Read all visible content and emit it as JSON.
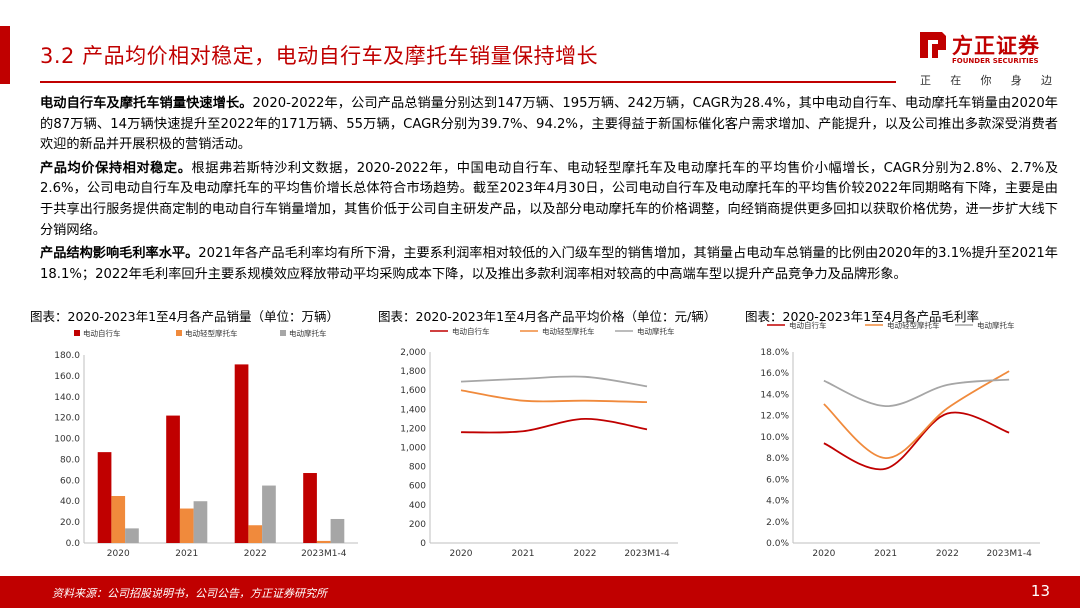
{
  "header": {
    "title": "3.2 产品均价相对稳定，电动自行车及摩托车销量保持增长"
  },
  "logo": {
    "name": "方正证券",
    "name_en": "FOUNDER SECURITIES",
    "slogan": [
      "正",
      "在",
      "你",
      "身",
      "边"
    ]
  },
  "paragraphs": [
    {
      "lead": "电动自行车及摩托车销量快速增长。",
      "text": "2020-2022年，公司产品总销量分别达到147万辆、195万辆、242万辆，CAGR为28.4%，其中电动自行车、电动摩托车销量由2020年的87万辆、14万辆快速提升至2022年的171万辆、55万辆，CAGR分别为39.7%、94.2%，主要得益于新国标催化客户需求增加、产能提升，以及公司推出多款深受消费者欢迎的新品并开展积极的营销活动。"
    },
    {
      "lead": "产品均价保持相对稳定。",
      "text": "根据弗若斯特沙利文数据，2020-2022年，中国电动自行车、电动轻型摩托车及电动摩托车的平均售价小幅增长，CAGR分别为2.8%、2.7%及2.6%，公司电动自行车及电动摩托车的平均售价增长总体符合市场趋势。截至2023年4月30日，公司电动自行车及电动摩托车的平均售价较2022年同期略有下降，主要是由于共享出行服务提供商定制的电动自行车销量增加，其售价低于公司自主研发产品，以及部分电动摩托车的价格调整，向经销商提供更多回扣以获取价格优势，进一步扩大线下分销网络。"
    },
    {
      "lead": "产品结构影响毛利率水平。",
      "text": "2021年各产品毛利率均有所下滑，主要系利润率相对较低的入门级车型的销售增加，其销量占电动车总销量的比例由2020年的3.1%提升至2021年18.1%；2022年毛利率回升主要系规模效应释放带动平均采购成本下降，以及推出多款利润率相对较高的中高端车型以提升产品竞争力及品牌形象。"
    }
  ],
  "colors": {
    "brand": "#c00000",
    "series": [
      "#c00000",
      "#f08a3c",
      "#a6a6a6"
    ]
  },
  "chart_data": [
    {
      "type": "bar",
      "title": "图表：2020-2023年1至4月各产品销量（单位：万辆）",
      "categories": [
        "2020",
        "2021",
        "2022",
        "2023M1-4"
      ],
      "series": [
        {
          "name": "电动自行车",
          "values": [
            87,
            122,
            171,
            67
          ]
        },
        {
          "name": "电动轻型摩托车",
          "values": [
            45,
            33,
            17,
            2
          ]
        },
        {
          "name": "电动摩托车",
          "values": [
            14,
            40,
            55,
            23
          ]
        }
      ],
      "ylim": [
        0,
        180
      ],
      "yticks": [
        "0.0",
        "20.0",
        "40.0",
        "60.0",
        "80.0",
        "100.0",
        "120.0",
        "140.0",
        "160.0",
        "180.0"
      ],
      "legend": "top",
      "grid": false
    },
    {
      "type": "line",
      "title": "图表：2020-2023年1至4月各产品平均价格（单位：元/辆）",
      "categories": [
        "2020",
        "2021",
        "2022",
        "2023M1-4"
      ],
      "series": [
        {
          "name": "电动自行车",
          "values": [
            1160,
            1170,
            1300,
            1190
          ]
        },
        {
          "name": "电动轻型摩托车",
          "values": [
            1600,
            1490,
            1490,
            1475
          ]
        },
        {
          "name": "电动摩托车",
          "values": [
            1690,
            1720,
            1740,
            1640
          ]
        }
      ],
      "ylim": [
        0,
        2000
      ],
      "yticks": [
        "0",
        "200",
        "400",
        "600",
        "800",
        "1,000",
        "1,200",
        "1,400",
        "1,600",
        "1,800",
        "2,000"
      ],
      "legend": "top",
      "grid": false
    },
    {
      "type": "line",
      "title": "图表：2020-2023年1至4月各产品毛利率",
      "categories": [
        "2020",
        "2021",
        "2022",
        "2023M1-4"
      ],
      "series": [
        {
          "name": "电动自行车",
          "values": [
            9.4,
            7.0,
            12.2,
            10.4
          ]
        },
        {
          "name": "电动轻型摩托车",
          "values": [
            13.1,
            8.0,
            12.7,
            16.2
          ]
        },
        {
          "name": "电动摩托车",
          "values": [
            15.3,
            12.9,
            14.9,
            15.4
          ]
        }
      ],
      "ylim": [
        0,
        18
      ],
      "yticks": [
        "0.0%",
        "2.0%",
        "4.0%",
        "6.0%",
        "8.0%",
        "10.0%",
        "12.0%",
        "14.0%",
        "16.0%",
        "18.0%"
      ],
      "legend": "top",
      "grid": false
    }
  ],
  "footer": {
    "source": "资料来源：公司招股说明书，公司公告，方正证券研究所",
    "page": "13"
  }
}
